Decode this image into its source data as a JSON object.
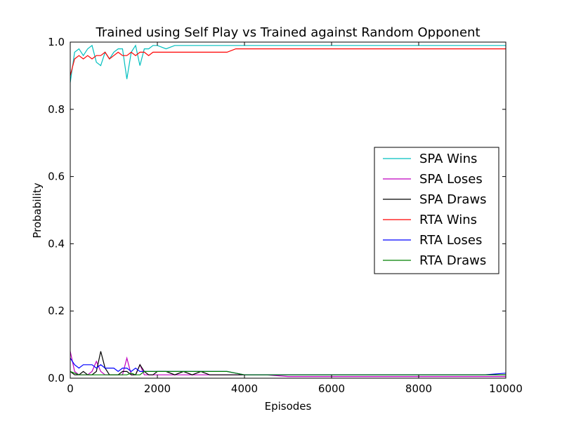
{
  "chart_data": {
    "type": "line",
    "title": "Trained using Self Play vs Trained against Random Opponent",
    "xlabel": "Episodes",
    "ylabel": "Probability",
    "xlim": [
      0,
      10000
    ],
    "ylim": [
      0,
      1.0
    ],
    "xticks": [
      0,
      2000,
      4000,
      6000,
      8000,
      10000
    ],
    "xtick_labels": [
      "0",
      "2000",
      "4000",
      "6000",
      "8000",
      "10000"
    ],
    "yticks": [
      0,
      0.2,
      0.4,
      0.6,
      0.8,
      1.0
    ],
    "ytick_labels": [
      "0.0",
      "0.2",
      "0.4",
      "0.6",
      "0.8",
      "1.0"
    ],
    "grid": false,
    "legend_position": "center-right",
    "x": [
      0,
      100,
      200,
      300,
      400,
      500,
      600,
      700,
      800,
      900,
      1000,
      1100,
      1200,
      1300,
      1400,
      1500,
      1600,
      1700,
      1800,
      1900,
      2000,
      2200,
      2400,
      2600,
      2800,
      3000,
      3200,
      3400,
      3600,
      3800,
      4000,
      4500,
      5000,
      5500,
      6000,
      6500,
      7000,
      7500,
      8000,
      8500,
      9000,
      9500,
      10000
    ],
    "series": [
      {
        "name": "SPA Wins",
        "color": "#00bfbf",
        "values": [
          0.88,
          0.97,
          0.98,
          0.96,
          0.98,
          0.99,
          0.94,
          0.93,
          0.97,
          0.95,
          0.97,
          0.98,
          0.98,
          0.89,
          0.97,
          0.99,
          0.93,
          0.98,
          0.98,
          0.99,
          0.99,
          0.98,
          0.99,
          0.99,
          0.99,
          0.99,
          0.99,
          0.99,
          0.99,
          0.99,
          0.99,
          0.99,
          0.99,
          0.99,
          0.99,
          0.99,
          0.99,
          0.99,
          0.99,
          0.99,
          0.99,
          0.99,
          0.99
        ]
      },
      {
        "name": "SPA Loses",
        "color": "#bf00bf",
        "values": [
          0.08,
          0.02,
          0.01,
          0.01,
          0.01,
          0.02,
          0.05,
          0.02,
          0.01,
          0.01,
          0.01,
          0.01,
          0.01,
          0.06,
          0.01,
          0.01,
          0.04,
          0.01,
          0.01,
          0.01,
          0.01,
          0.01,
          0.01,
          0.01,
          0.01,
          0.01,
          0.01,
          0.01,
          0.01,
          0.01,
          0.01,
          0.01,
          0.005,
          0.005,
          0.005,
          0.005,
          0.005,
          0.005,
          0.005,
          0.005,
          0.005,
          0.005,
          0.005
        ]
      },
      {
        "name": "SPA Draws",
        "color": "#000000",
        "values": [
          0.02,
          0.01,
          0.01,
          0.02,
          0.01,
          0.01,
          0.02,
          0.08,
          0.03,
          0.01,
          0.01,
          0.01,
          0.02,
          0.02,
          0.01,
          0.01,
          0.04,
          0.02,
          0.01,
          0.01,
          0.02,
          0.02,
          0.01,
          0.02,
          0.01,
          0.02,
          0.01,
          0.01,
          0.01,
          0.01,
          0.01,
          0.01,
          0.01,
          0.01,
          0.01,
          0.01,
          0.01,
          0.01,
          0.01,
          0.01,
          0.01,
          0.01,
          0.01
        ]
      },
      {
        "name": "RTA Wins",
        "color": "#ff0000",
        "values": [
          0.9,
          0.95,
          0.96,
          0.95,
          0.96,
          0.95,
          0.96,
          0.96,
          0.97,
          0.95,
          0.96,
          0.97,
          0.96,
          0.96,
          0.97,
          0.96,
          0.97,
          0.97,
          0.96,
          0.97,
          0.97,
          0.97,
          0.97,
          0.97,
          0.97,
          0.97,
          0.97,
          0.97,
          0.97,
          0.98,
          0.98,
          0.98,
          0.98,
          0.98,
          0.98,
          0.98,
          0.98,
          0.98,
          0.98,
          0.98,
          0.98,
          0.98,
          0.98
        ]
      },
      {
        "name": "RTA Loses",
        "color": "#0000ff",
        "values": [
          0.06,
          0.04,
          0.03,
          0.04,
          0.04,
          0.04,
          0.03,
          0.04,
          0.03,
          0.03,
          0.03,
          0.02,
          0.03,
          0.03,
          0.02,
          0.03,
          0.02,
          0.02,
          0.02,
          0.02,
          0.02,
          0.02,
          0.02,
          0.02,
          0.02,
          0.02,
          0.02,
          0.02,
          0.02,
          0.015,
          0.01,
          0.01,
          0.01,
          0.01,
          0.01,
          0.01,
          0.01,
          0.01,
          0.01,
          0.01,
          0.01,
          0.01,
          0.015
        ]
      },
      {
        "name": "RTA Draws",
        "color": "#008000",
        "values": [
          0.02,
          0.015,
          0.01,
          0.01,
          0.01,
          0.01,
          0.01,
          0.01,
          0.01,
          0.01,
          0.01,
          0.01,
          0.01,
          0.01,
          0.015,
          0.01,
          0.01,
          0.02,
          0.02,
          0.02,
          0.02,
          0.02,
          0.02,
          0.02,
          0.02,
          0.02,
          0.02,
          0.02,
          0.02,
          0.015,
          0.01,
          0.01,
          0.01,
          0.01,
          0.01,
          0.01,
          0.01,
          0.01,
          0.01,
          0.01,
          0.01,
          0.01,
          0.01
        ]
      }
    ]
  }
}
